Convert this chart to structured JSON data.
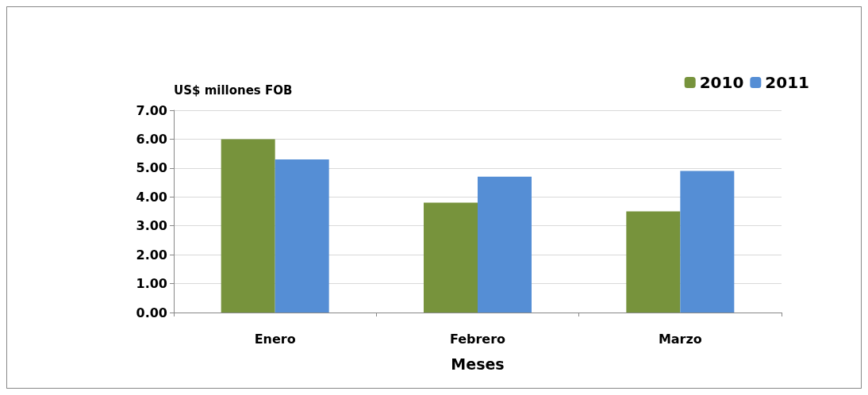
{
  "chart_data": {
    "type": "bar",
    "ylabel": "US$ millones FOB",
    "xlabel": "Meses",
    "categories": [
      "Enero",
      "Febrero",
      "Marzo"
    ],
    "series": [
      {
        "name": "2010",
        "color": "#77933c",
        "values": [
          6.0,
          3.8,
          3.5
        ]
      },
      {
        "name": "2011",
        "color": "#558ed5",
        "values": [
          5.3,
          4.7,
          4.9
        ]
      }
    ],
    "ylim": [
      0,
      7
    ],
    "yticks": [
      {
        "value": 0,
        "label": "0.00"
      },
      {
        "value": 1,
        "label": "1.00"
      },
      {
        "value": 2,
        "label": "2.00"
      },
      {
        "value": 3,
        "label": "3.00"
      },
      {
        "value": 4,
        "label": "4.00"
      },
      {
        "value": 5,
        "label": "5.00"
      },
      {
        "value": 6,
        "label": "6.00"
      },
      {
        "value": 7,
        "label": "7.00"
      }
    ],
    "grid": "y",
    "legend": "top right"
  }
}
